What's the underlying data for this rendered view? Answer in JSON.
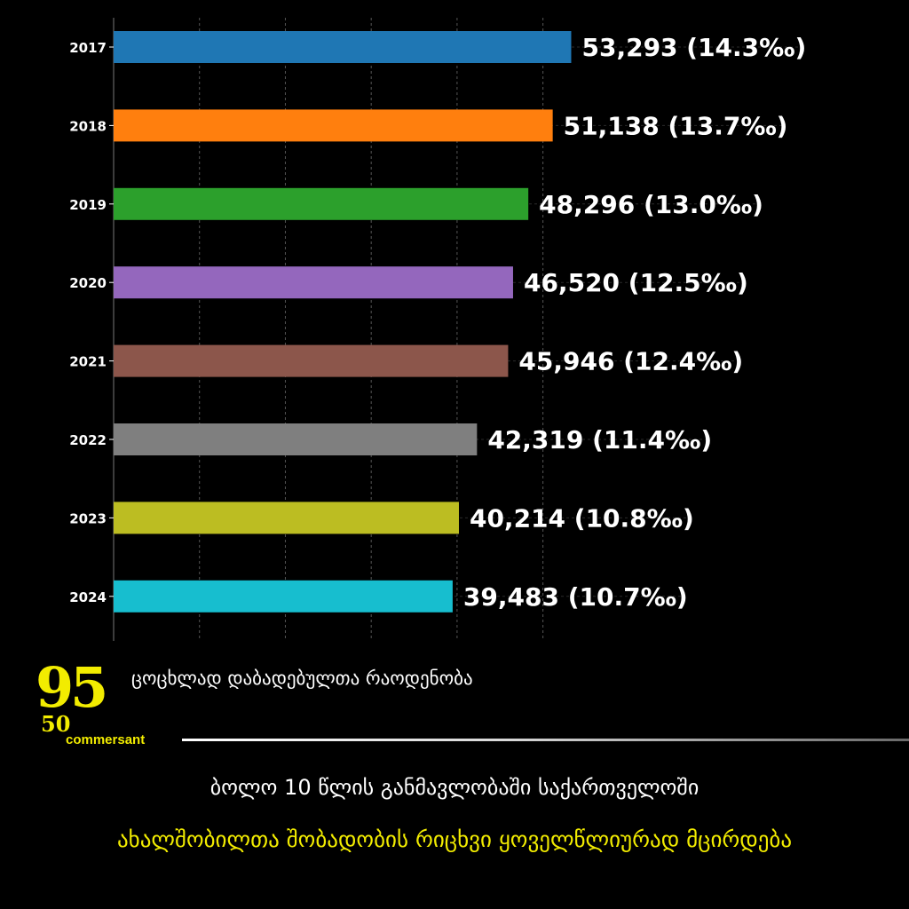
{
  "chart_data": {
    "type": "bar",
    "orientation": "horizontal",
    "categories": [
      "2017",
      "2018",
      "2019",
      "2020",
      "2021",
      "2022",
      "2023",
      "2024"
    ],
    "values": [
      53293,
      51138,
      48296,
      46520,
      45946,
      42319,
      40214,
      39483
    ],
    "value_labels": [
      "53,293",
      "51,138",
      "48,296",
      "46,520",
      "45,946",
      "42,319",
      "40,214",
      "39,483"
    ],
    "rate_labels": [
      "(14.3‰)",
      "(13.7‰)",
      "(13.0‰)",
      "(12.5‰)",
      "(12.4‰)",
      "(11.4‰)",
      "(10.8‰)",
      "(10.7‰)"
    ],
    "colors": [
      "#1f77b4",
      "#ff7f0e",
      "#2ca02c",
      "#9467bd",
      "#8c564b",
      "#7f7f7f",
      "#bcbd22",
      "#17becf"
    ],
    "xlabel": "ცოცხლად დაბადებულთა რაოდენობა",
    "ylabel": "",
    "title": "",
    "xlim": [
      0,
      55000
    ],
    "grid": "vertical dashed",
    "legend": "none"
  },
  "captions": {
    "line1": "ბოლო 10 წლის განმავლობაში საქართველოში",
    "line2": "ახალშობილთა შობადობის რიცხვი ყოველწლიურად მცირდება"
  },
  "logo": {
    "numerals": "95",
    "small_numerals": "50",
    "brand": "commersant",
    "color": "#f2ec00"
  }
}
